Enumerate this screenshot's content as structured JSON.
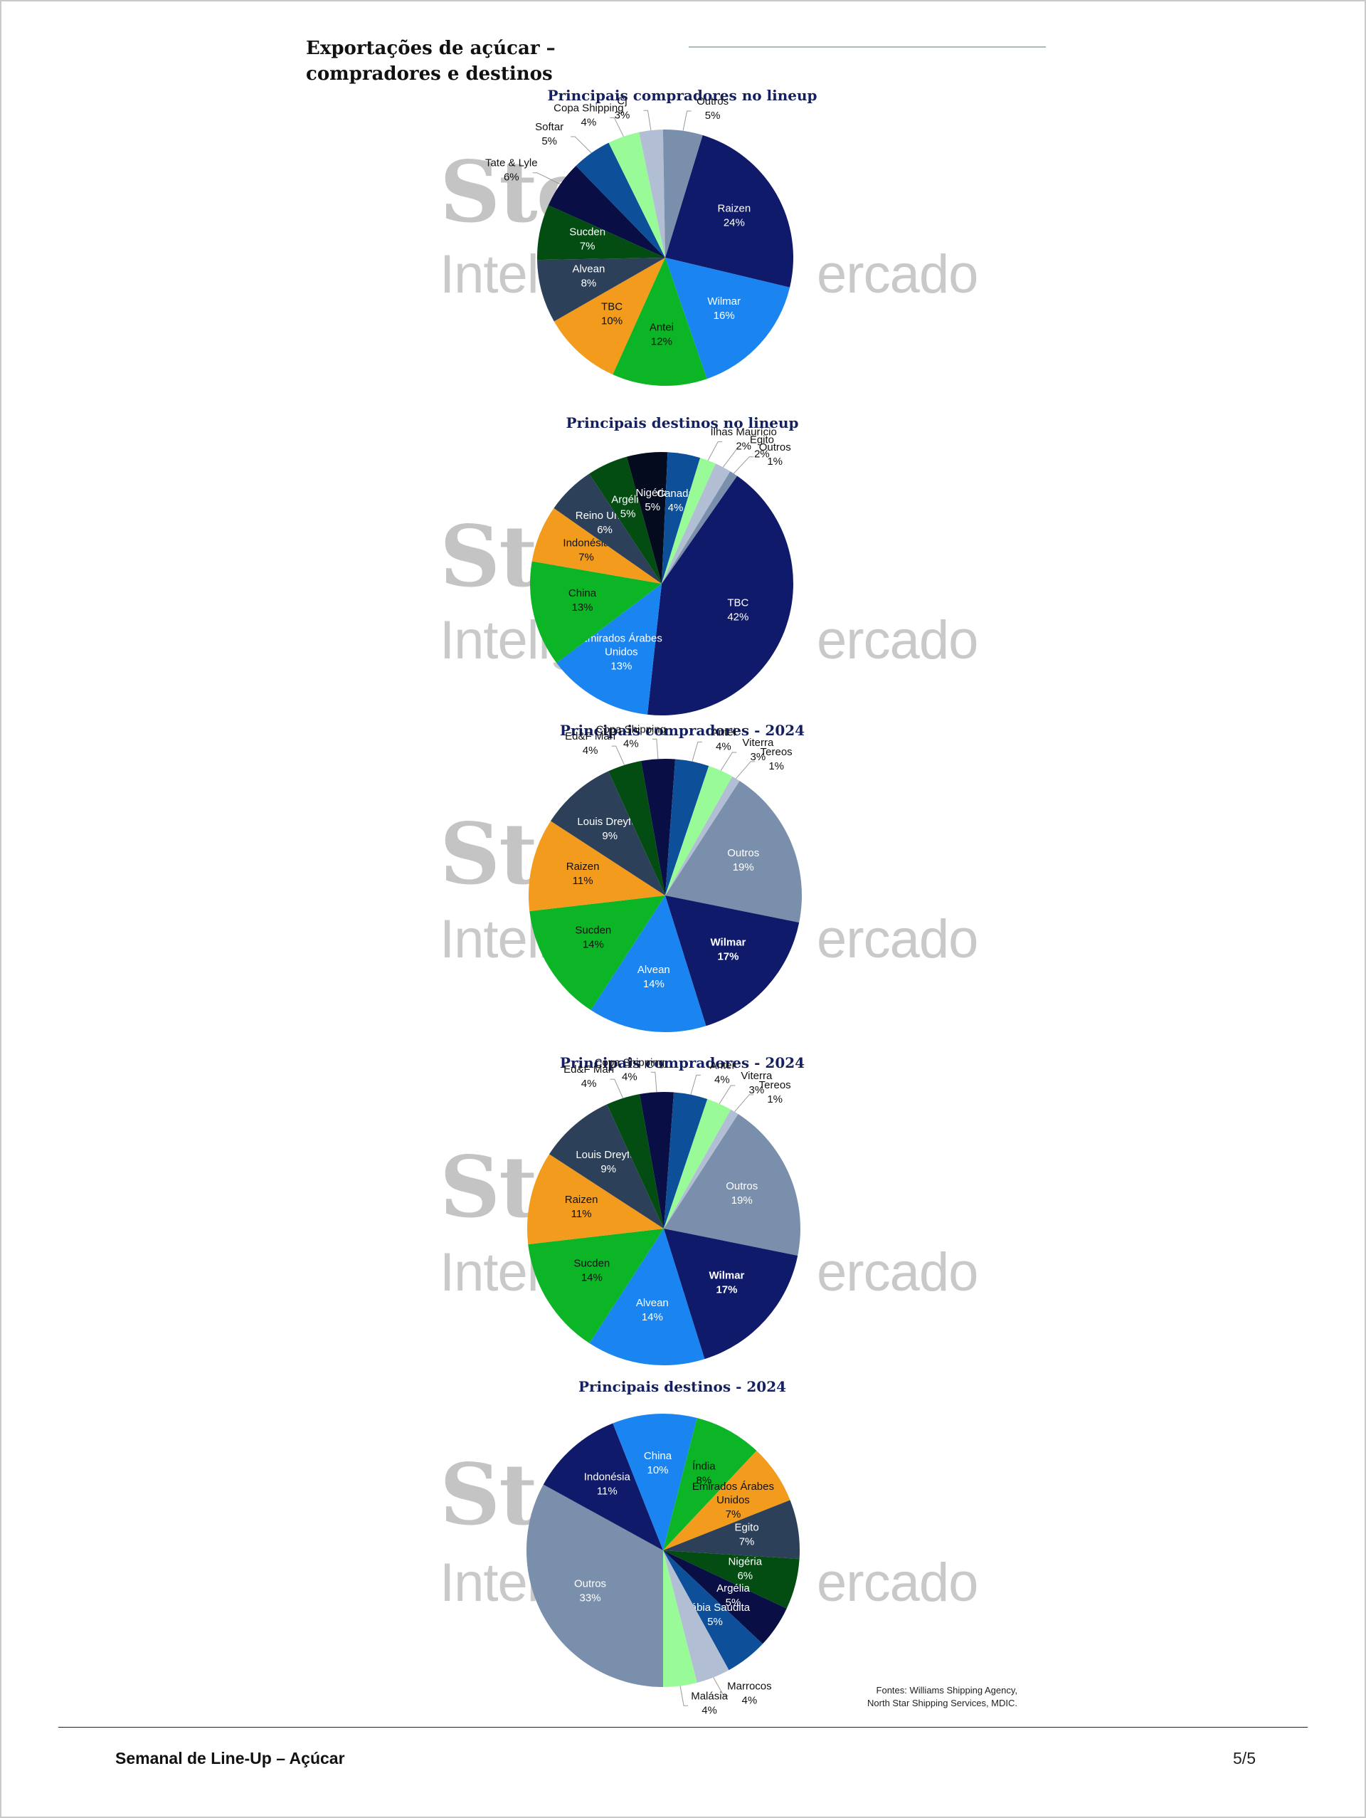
{
  "page": {
    "title": "Exportações de açúcar – compradores e destinos",
    "sources": [
      "Fontes: Williams Shipping Agency,",
      "North Star Shipping Services, MDIC."
    ],
    "footer_title": "Semanal de Line-Up – Açúcar",
    "page_number": "5/5"
  },
  "watermark": {
    "big": "Sto",
    "sub_left": "Intelig",
    "sub_right": "ercado"
  },
  "chart_data": [
    {
      "type": "pie",
      "title": "Principais compradores no lineup",
      "labels": [
        "Raizen",
        "Wilmar",
        "Antei",
        "TBC",
        "Alvean",
        "Sucden",
        "Tate & Lyle",
        "Softar",
        "Copa Shipping",
        "Cj",
        "Outros"
      ],
      "values": [
        24,
        16,
        12,
        10,
        8,
        7,
        6,
        5,
        4,
        3,
        5
      ],
      "colors": [
        "#0f1a6b",
        "#1a84f0",
        "#0bb526",
        "#f29b1d",
        "#2d4059",
        "#034d12",
        "#090e45",
        "#0d4f99",
        "#98fb98",
        "#b2bed4",
        "#7a8fac"
      ]
    },
    {
      "type": "pie",
      "title": "Principais destinos no lineup",
      "labels": [
        "TBC",
        "Emirados Árabes Unidos",
        "China",
        "Indonésia",
        "Reino Unido",
        "Argélia",
        "Nigéria",
        "Canadá",
        "Ilhas Maurício",
        "Egito",
        "Outros"
      ],
      "values": [
        42,
        13,
        13,
        7,
        6,
        5,
        5,
        4,
        2,
        2,
        1
      ],
      "colors": [
        "#0f1a6b",
        "#1a84f0",
        "#0bb526",
        "#f29b1d",
        "#2d4059",
        "#034d12",
        "#050b1e",
        "#0d4f99",
        "#98fb98",
        "#b2bed4",
        "#7a8fac"
      ]
    },
    {
      "type": "pie",
      "title": "Principais compradores - 2024",
      "labels": [
        "Outros",
        "Wilmar",
        "Alvean",
        "Sucden",
        "Raizen",
        "Louis Dreyfus",
        "Ed&F Man",
        "Copa Shipping",
        "Antei",
        "Viterra",
        "Tereos"
      ],
      "values": [
        19,
        17,
        14,
        14,
        11,
        9,
        4,
        4,
        4,
        3,
        1
      ],
      "colors": [
        "#7a8fac",
        "#0f1a6b",
        "#1a84f0",
        "#0bb526",
        "#f29b1d",
        "#2d4059",
        "#034d12",
        "#090e45",
        "#0d4f99",
        "#98fb98",
        "#b2bed4"
      ]
    },
    {
      "type": "pie",
      "title": "Principais compradores - 2024",
      "labels": [
        "Outros",
        "Wilmar",
        "Alvean",
        "Sucden",
        "Raizen",
        "Louis Dreyfus",
        "Ed&F Man",
        "Copa Shipping",
        "Antei",
        "Viterra",
        "Tereos"
      ],
      "values": [
        19,
        17,
        14,
        14,
        11,
        9,
        4,
        4,
        4,
        3,
        1
      ],
      "colors": [
        "#7a8fac",
        "#0f1a6b",
        "#1a84f0",
        "#0bb526",
        "#f29b1d",
        "#2d4059",
        "#034d12",
        "#090e45",
        "#0d4f99",
        "#98fb98",
        "#b2bed4"
      ]
    },
    {
      "type": "pie",
      "title": "Principais destinos - 2024",
      "labels": [
        "Outros",
        "Indonésia",
        "China",
        "Índia",
        "Emirados Árabes Unidos",
        "Egito",
        "Nigéria",
        "Argélia",
        "Arábia Saudita",
        "Marrocos",
        "Malásia"
      ],
      "values": [
        33,
        11,
        10,
        8,
        7,
        7,
        6,
        5,
        5,
        4,
        4
      ],
      "colors": [
        "#7a8fac",
        "#0f1a6b",
        "#1a84f0",
        "#0bb526",
        "#f29b1d",
        "#2d4059",
        "#034d12",
        "#090e45",
        "#0d4f99",
        "#b2bed4",
        "#98fb98"
      ]
    }
  ]
}
